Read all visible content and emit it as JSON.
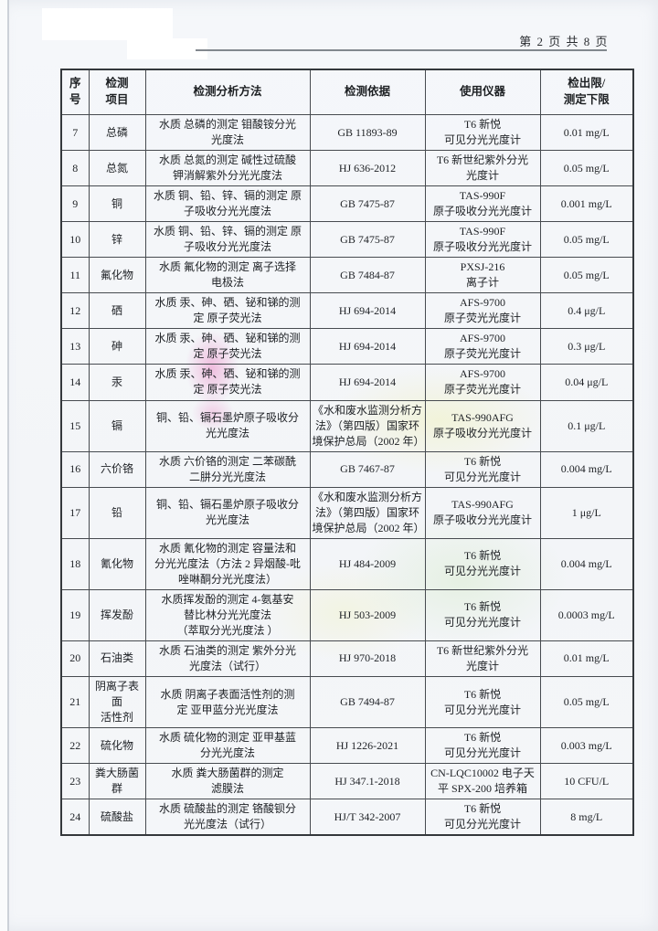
{
  "header": {
    "page_info": "第 2 页 共 8 页"
  },
  "colors": {
    "paper": "#f4f6f9",
    "table_border": "#474b50",
    "text": "#202327",
    "rule_gray": "#82888e",
    "stamp_pink": "#ec8ec9",
    "stamp_yellow": "#f0f0b4",
    "stamp_green": "#cfe8bf"
  },
  "table": {
    "headers": [
      "序号",
      "检测\n项目",
      "检测分析方法",
      "检测依据",
      "使用仪器",
      "检出限/\n测定下限"
    ],
    "rows": [
      {
        "no": "7",
        "item": "总磷",
        "method": "水质 总磷的测定 钼酸铵分光\n光度法",
        "basis": "GB 11893-89",
        "instrument": "T6 新悦\n可见分光光度计",
        "limit": "0.01 mg/L"
      },
      {
        "no": "8",
        "item": "总氮",
        "method": "水质 总氮的测定 碱性过硫酸\n钾消解紫外分光光度法",
        "basis": "HJ 636-2012",
        "instrument": "T6 新世纪紫外分光\n光度计",
        "limit": "0.05 mg/L"
      },
      {
        "no": "9",
        "item": "铜",
        "method": "水质 铜、铅、锌、镉的测定 原\n子吸收分光光度法",
        "basis": "GB 7475-87",
        "instrument": "TAS-990F\n原子吸收分光光度计",
        "limit": "0.001 mg/L"
      },
      {
        "no": "10",
        "item": "锌",
        "method": "水质 铜、铅、锌、镉的测定 原\n子吸收分光光度法",
        "basis": "GB 7475-87",
        "instrument": "TAS-990F\n原子吸收分光光度计",
        "limit": "0.05 mg/L"
      },
      {
        "no": "11",
        "item": "氟化物",
        "method": "水质 氟化物的测定 离子选择\n电极法",
        "basis": "GB 7484-87",
        "instrument": "PXSJ-216\n离子计",
        "limit": "0.05 mg/L"
      },
      {
        "no": "12",
        "item": "硒",
        "method": "水质 汞、砷、硒、铋和锑的测\n定 原子荧光法",
        "basis": "HJ 694-2014",
        "instrument": "AFS-9700\n原子荧光光度计",
        "limit": "0.4 μg/L"
      },
      {
        "no": "13",
        "item": "砷",
        "method": "水质 汞、砷、硒、铋和锑的测\n定 原子荧光法",
        "basis": "HJ 694-2014",
        "instrument": "AFS-9700\n原子荧光光度计",
        "limit": "0.3 μg/L"
      },
      {
        "no": "14",
        "item": "汞",
        "method": "水质 汞、砷、硒、铋和锑的测\n定 原子荧光法",
        "basis": "HJ 694-2014",
        "instrument": "AFS-9700\n原子荧光光度计",
        "limit": "0.04 μg/L"
      },
      {
        "no": "15",
        "item": "镉",
        "method": "铜、铅、镉石墨炉原子吸收分\n光光度法",
        "basis": "《水和废水监测分析方\n法》（第四版）国家环\n境保护总局（2002 年）",
        "instrument": "TAS-990AFG\n原子吸收分光光度计",
        "limit": "0.1 μg/L"
      },
      {
        "no": "16",
        "item": "六价铬",
        "method": "水质 六价铬的测定 二苯碳酰\n二肼分光光度法",
        "basis": "GB 7467-87",
        "instrument": "T6 新悦\n可见分光光度计",
        "limit": "0.004 mg/L"
      },
      {
        "no": "17",
        "item": "铅",
        "method": "铜、铅、镉石墨炉原子吸收分\n光光度法",
        "basis": "《水和废水监测分析方\n法》（第四版）国家环\n境保护总局（2002 年）",
        "instrument": "TAS-990AFG\n原子吸收分光光度计",
        "limit": "1 μg/L"
      },
      {
        "no": "18",
        "item": "氰化物",
        "method": "水质 氰化物的测定 容量法和\n分光光度法（方法 2 异烟酸-吡\n唑啉酮分光光度法）",
        "basis": "HJ 484-2009",
        "instrument": "T6 新悦\n可见分光光度计",
        "limit": "0.004 mg/L"
      },
      {
        "no": "19",
        "item": "挥发酚",
        "method": "水质挥发酚的测定 4-氨基安\n替比林分光光度法\n（萃取分光光度法 ）",
        "basis": "HJ 503-2009",
        "instrument": "T6 新悦\n可见分光光度计",
        "limit": "0.0003 mg/L"
      },
      {
        "no": "20",
        "item": "石油类",
        "method": "水质 石油类的测定 紫外分光\n光度法（试行）",
        "basis": "HJ 970-2018",
        "instrument": "T6 新世纪紫外分光\n光度计",
        "limit": "0.01 mg/L"
      },
      {
        "no": "21",
        "item": "阴离子表面\n活性剂",
        "method": "水质 阴离子表面活性剂的测\n定 亚甲蓝分光光度法",
        "basis": "GB 7494-87",
        "instrument": "T6 新悦\n可见分光光度计",
        "limit": "0.05 mg/L"
      },
      {
        "no": "22",
        "item": "硫化物",
        "method": "水质 硫化物的测定 亚甲基蓝\n分光光度法",
        "basis": "HJ 1226-2021",
        "instrument": "T6 新悦\n可见分光光度计",
        "limit": "0.003 mg/L"
      },
      {
        "no": "23",
        "item": "粪大肠菌群",
        "method": "水质 粪大肠菌群的测定\n滤膜法",
        "basis": "HJ 347.1-2018",
        "instrument": "CN-LQC10002 电子天\n平 SPX-200 培养箱",
        "limit": "10 CFU/L"
      },
      {
        "no": "24",
        "item": "硫酸盐",
        "method": "水质 硫酸盐的测定 铬酸钡分\n光光度法（试行）",
        "basis": "HJ/T 342-2007",
        "instrument": "T6 新悦\n可见分光光度计",
        "limit": "8 mg/L"
      }
    ]
  }
}
